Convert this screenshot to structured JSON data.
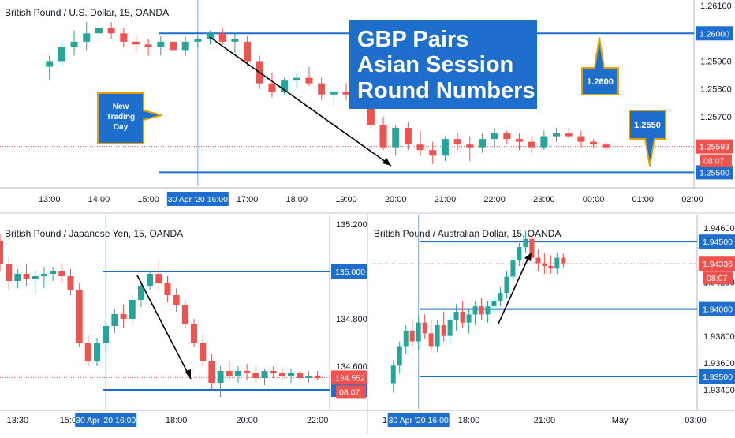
{
  "colors": {
    "up": "#26a69a",
    "down": "#ef5350",
    "level": "#1e6fcd",
    "flag": "#1e6fcd",
    "price_flag": "#ef5350",
    "callout_fill": "#1e6fcd",
    "callout_border": "#e0a100"
  },
  "headline": {
    "lines": [
      "GBP Pairs",
      "Asian Session",
      "Round Numbers"
    ]
  },
  "callouts": {
    "new_day": [
      "New",
      "Trading",
      "Day"
    ],
    "level_high": "1.2600",
    "level_low": "1.2550"
  },
  "chart_data": [
    {
      "type": "candlestick",
      "title": "British Pound / U.S. Dollar, 15, OANDA",
      "ylim": [
        1.2545,
        1.2612
      ],
      "yticks": [
        "1.26100",
        "1.25900",
        "1.25800",
        "1.25700"
      ],
      "xticks": [
        "13:00",
        "14:00",
        "15:00",
        "16:00",
        "17:00",
        "18:00",
        "19:00",
        "20:00",
        "21:00",
        "22:00",
        "23:00",
        "00:00",
        "01:00",
        "02:00"
      ],
      "session_label": "30 Apr '20 16:00",
      "levels": [
        "1.26000",
        "1.25500"
      ],
      "level_values": [
        1.26,
        1.255
      ],
      "last_price": "1.25593",
      "last_value": 1.25593,
      "countdown": "08:07",
      "candles": [
        {
          "t": 13.0,
          "o": 1.2588,
          "h": 1.2592,
          "l": 1.2583,
          "c": 1.259
        },
        {
          "t": 13.25,
          "o": 1.259,
          "h": 1.2597,
          "l": 1.2588,
          "c": 1.2595
        },
        {
          "t": 13.5,
          "o": 1.2595,
          "h": 1.2601,
          "l": 1.2592,
          "c": 1.2597
        },
        {
          "t": 13.75,
          "o": 1.2597,
          "h": 1.2604,
          "l": 1.2594,
          "c": 1.26
        },
        {
          "t": 14.0,
          "o": 1.26,
          "h": 1.2605,
          "l": 1.2597,
          "c": 1.2602
        },
        {
          "t": 14.25,
          "o": 1.2602,
          "h": 1.2604,
          "l": 1.2598,
          "c": 1.26
        },
        {
          "t": 14.5,
          "o": 1.26,
          "h": 1.2602,
          "l": 1.2595,
          "c": 1.2597
        },
        {
          "t": 14.75,
          "o": 1.2597,
          "h": 1.2599,
          "l": 1.2593,
          "c": 1.2596
        },
        {
          "t": 15.0,
          "o": 1.2596,
          "h": 1.2598,
          "l": 1.2592,
          "c": 1.2595
        },
        {
          "t": 15.25,
          "o": 1.2595,
          "h": 1.2599,
          "l": 1.2592,
          "c": 1.2597
        },
        {
          "t": 15.5,
          "o": 1.2597,
          "h": 1.26,
          "l": 1.2593,
          "c": 1.2594
        },
        {
          "t": 15.75,
          "o": 1.2594,
          "h": 1.2599,
          "l": 1.2592,
          "c": 1.2597
        },
        {
          "t": 16.0,
          "o": 1.2597,
          "h": 1.2599,
          "l": 1.2595,
          "c": 1.2598
        },
        {
          "t": 16.25,
          "o": 1.2598,
          "h": 1.2601,
          "l": 1.2596,
          "c": 1.26
        },
        {
          "t": 16.5,
          "o": 1.26,
          "h": 1.2602,
          "l": 1.2596,
          "c": 1.2597
        },
        {
          "t": 16.75,
          "o": 1.2597,
          "h": 1.26,
          "l": 1.2593,
          "c": 1.2598
        },
        {
          "t": 17.0,
          "o": 1.2597,
          "h": 1.2599,
          "l": 1.2588,
          "c": 1.259
        },
        {
          "t": 17.25,
          "o": 1.259,
          "h": 1.2592,
          "l": 1.258,
          "c": 1.2582
        },
        {
          "t": 17.5,
          "o": 1.2582,
          "h": 1.2586,
          "l": 1.2577,
          "c": 1.2579
        },
        {
          "t": 17.75,
          "o": 1.2579,
          "h": 1.2584,
          "l": 1.2578,
          "c": 1.2583
        },
        {
          "t": 18.0,
          "o": 1.2583,
          "h": 1.2586,
          "l": 1.258,
          "c": 1.2584
        },
        {
          "t": 18.25,
          "o": 1.2584,
          "h": 1.2588,
          "l": 1.2581,
          "c": 1.2582
        },
        {
          "t": 18.5,
          "o": 1.2582,
          "h": 1.2584,
          "l": 1.2576,
          "c": 1.2578
        },
        {
          "t": 18.75,
          "o": 1.2578,
          "h": 1.258,
          "l": 1.2574,
          "c": 1.2579
        },
        {
          "t": 19.0,
          "o": 1.2579,
          "h": 1.2582,
          "l": 1.2576,
          "c": 1.2578
        },
        {
          "t": 19.25,
          "o": 1.2583,
          "h": 1.2584,
          "l": 1.2574,
          "c": 1.2575
        },
        {
          "t": 19.5,
          "o": 1.2575,
          "h": 1.2578,
          "l": 1.2566,
          "c": 1.2567
        },
        {
          "t": 19.75,
          "o": 1.2567,
          "h": 1.257,
          "l": 1.2558,
          "c": 1.2559
        },
        {
          "t": 20.0,
          "o": 1.2559,
          "h": 1.2567,
          "l": 1.2556,
          "c": 1.2566
        },
        {
          "t": 20.25,
          "o": 1.2566,
          "h": 1.2568,
          "l": 1.2558,
          "c": 1.256
        },
        {
          "t": 20.5,
          "o": 1.256,
          "h": 1.2565,
          "l": 1.2556,
          "c": 1.2558
        },
        {
          "t": 20.75,
          "o": 1.2558,
          "h": 1.2561,
          "l": 1.2553,
          "c": 1.2556
        },
        {
          "t": 21.0,
          "o": 1.2556,
          "h": 1.2563,
          "l": 1.2554,
          "c": 1.2562
        },
        {
          "t": 21.25,
          "o": 1.2562,
          "h": 1.2564,
          "l": 1.2558,
          "c": 1.256
        },
        {
          "t": 21.5,
          "o": 1.256,
          "h": 1.2563,
          "l": 1.2554,
          "c": 1.2559
        },
        {
          "t": 21.75,
          "o": 1.2559,
          "h": 1.2564,
          "l": 1.2557,
          "c": 1.2562
        },
        {
          "t": 22.0,
          "o": 1.2562,
          "h": 1.2566,
          "l": 1.2559,
          "c": 1.2564
        },
        {
          "t": 22.25,
          "o": 1.2564,
          "h": 1.2565,
          "l": 1.256,
          "c": 1.2562
        },
        {
          "t": 22.5,
          "o": 1.2562,
          "h": 1.2564,
          "l": 1.2558,
          "c": 1.2561
        },
        {
          "t": 22.75,
          "o": 1.2561,
          "h": 1.2563,
          "l": 1.2557,
          "c": 1.2559
        },
        {
          "t": 23.0,
          "o": 1.2559,
          "h": 1.2565,
          "l": 1.2558,
          "c": 1.2563
        },
        {
          "t": 23.25,
          "o": 1.2563,
          "h": 1.2566,
          "l": 1.2561,
          "c": 1.2564
        },
        {
          "t": 23.5,
          "o": 1.2564,
          "h": 1.2566,
          "l": 1.2562,
          "c": 1.2563
        },
        {
          "t": 23.75,
          "o": 1.2563,
          "h": 1.2565,
          "l": 1.2559,
          "c": 1.2561
        },
        {
          "t": 24.0,
          "o": 1.2561,
          "h": 1.2562,
          "l": 1.2559,
          "c": 1.256
        },
        {
          "t": 24.25,
          "o": 1.256,
          "h": 1.2561,
          "l": 1.2558,
          "c": 1.2559
        }
      ]
    },
    {
      "type": "candlestick",
      "title": "British Pound / Japanese Yen, 15, OANDA",
      "ylim": [
        134.42,
        135.24
      ],
      "yticks": [
        "135.200",
        "134.800",
        "134.600"
      ],
      "xticks": [
        "13:30",
        "15:00",
        "16:00",
        "18:00",
        "20:00",
        "22:00"
      ],
      "session_label": "30 Apr '20 16:00",
      "levels": [
        "135.000",
        "134.500"
      ],
      "level_values": [
        135.0,
        134.5
      ],
      "last_price": "134.552",
      "last_value": 134.552,
      "countdown": "08:07",
      "candles": [
        {
          "t": 13.0,
          "o": 135.13,
          "h": 135.16,
          "l": 135.0,
          "c": 135.03
        },
        {
          "t": 13.25,
          "o": 135.03,
          "h": 135.06,
          "l": 134.92,
          "c": 134.96
        },
        {
          "t": 13.5,
          "o": 134.96,
          "h": 135.01,
          "l": 134.93,
          "c": 134.99
        },
        {
          "t": 13.75,
          "o": 134.99,
          "h": 135.03,
          "l": 134.94,
          "c": 134.97
        },
        {
          "t": 14.0,
          "o": 134.97,
          "h": 135.0,
          "l": 134.91,
          "c": 134.98
        },
        {
          "t": 14.25,
          "o": 134.98,
          "h": 135.02,
          "l": 134.93,
          "c": 134.99
        },
        {
          "t": 14.5,
          "o": 134.99,
          "h": 135.02,
          "l": 134.96,
          "c": 135.0
        },
        {
          "t": 14.75,
          "o": 135.0,
          "h": 135.03,
          "l": 134.95,
          "c": 134.98
        },
        {
          "t": 15.0,
          "o": 134.98,
          "h": 135.01,
          "l": 134.9,
          "c": 134.92
        },
        {
          "t": 15.25,
          "o": 134.92,
          "h": 134.95,
          "l": 134.68,
          "c": 134.7
        },
        {
          "t": 15.5,
          "o": 134.7,
          "h": 134.73,
          "l": 134.6,
          "c": 134.62
        },
        {
          "t": 15.75,
          "o": 134.62,
          "h": 134.72,
          "l": 134.6,
          "c": 134.7
        },
        {
          "t": 16.0,
          "o": 134.7,
          "h": 134.79,
          "l": 134.66,
          "c": 134.77
        },
        {
          "t": 16.25,
          "o": 134.77,
          "h": 134.84,
          "l": 134.74,
          "c": 134.82
        },
        {
          "t": 16.5,
          "o": 134.82,
          "h": 134.86,
          "l": 134.76,
          "c": 134.8
        },
        {
          "t": 16.75,
          "o": 134.8,
          "h": 134.9,
          "l": 134.78,
          "c": 134.88
        },
        {
          "t": 17.0,
          "o": 134.88,
          "h": 134.96,
          "l": 134.85,
          "c": 134.94
        },
        {
          "t": 17.25,
          "o": 134.94,
          "h": 135.0,
          "l": 134.92,
          "c": 134.99
        },
        {
          "t": 17.5,
          "o": 134.99,
          "h": 135.05,
          "l": 134.92,
          "c": 134.95
        },
        {
          "t": 17.75,
          "o": 134.95,
          "h": 134.98,
          "l": 134.87,
          "c": 134.9
        },
        {
          "t": 18.0,
          "o": 134.9,
          "h": 134.93,
          "l": 134.83,
          "c": 134.86
        },
        {
          "t": 18.25,
          "o": 134.86,
          "h": 134.88,
          "l": 134.76,
          "c": 134.78
        },
        {
          "t": 18.5,
          "o": 134.78,
          "h": 134.8,
          "l": 134.68,
          "c": 134.7
        },
        {
          "t": 18.75,
          "o": 134.7,
          "h": 134.73,
          "l": 134.6,
          "c": 134.62
        },
        {
          "t": 19.0,
          "o": 134.62,
          "h": 134.65,
          "l": 134.5,
          "c": 134.53
        },
        {
          "t": 19.25,
          "o": 134.53,
          "h": 134.6,
          "l": 134.47,
          "c": 134.58
        },
        {
          "t": 19.5,
          "o": 134.58,
          "h": 134.62,
          "l": 134.54,
          "c": 134.56
        },
        {
          "t": 19.75,
          "o": 134.56,
          "h": 134.6,
          "l": 134.53,
          "c": 134.58
        },
        {
          "t": 20.0,
          "o": 134.58,
          "h": 134.61,
          "l": 134.54,
          "c": 134.57
        },
        {
          "t": 20.25,
          "o": 134.57,
          "h": 134.6,
          "l": 134.53,
          "c": 134.55
        },
        {
          "t": 20.5,
          "o": 134.55,
          "h": 134.59,
          "l": 134.52,
          "c": 134.58
        },
        {
          "t": 20.75,
          "o": 134.58,
          "h": 134.6,
          "l": 134.55,
          "c": 134.57
        },
        {
          "t": 21.0,
          "o": 134.57,
          "h": 134.59,
          "l": 134.54,
          "c": 134.56
        },
        {
          "t": 21.25,
          "o": 134.56,
          "h": 134.59,
          "l": 134.53,
          "c": 134.57
        },
        {
          "t": 21.5,
          "o": 134.57,
          "h": 134.58,
          "l": 134.54,
          "c": 134.55
        },
        {
          "t": 21.75,
          "o": 134.55,
          "h": 134.58,
          "l": 134.53,
          "c": 134.56
        },
        {
          "t": 22.0,
          "o": 134.56,
          "h": 134.58,
          "l": 134.54,
          "c": 134.55
        }
      ]
    },
    {
      "type": "candlestick",
      "title": "British Pound / Australian Dollar, 15, OANDA",
      "ylim": [
        1.9326,
        1.947
      ],
      "yticks": [
        "1.94600",
        "1.94200",
        "1.93800",
        "1.93600",
        "1.93400"
      ],
      "xticks": [
        "15:00",
        "16:00",
        "18:00",
        "21:00",
        "May",
        "03:00"
      ],
      "session_label": "30 Apr '20 16:00",
      "levels": [
        "1.94500",
        "1.94000",
        "1.93500"
      ],
      "level_values": [
        1.945,
        1.94,
        1.935
      ],
      "last_price": "1.94336",
      "last_value": 1.94336,
      "countdown": "08:07",
      "candles": [
        {
          "t": 15.0,
          "o": 1.9345,
          "h": 1.9362,
          "l": 1.9338,
          "c": 1.9358
        },
        {
          "t": 15.25,
          "o": 1.9358,
          "h": 1.9376,
          "l": 1.9352,
          "c": 1.9372
        },
        {
          "t": 15.5,
          "o": 1.9372,
          "h": 1.9388,
          "l": 1.9367,
          "c": 1.9384
        },
        {
          "t": 15.75,
          "o": 1.9384,
          "h": 1.9392,
          "l": 1.9372,
          "c": 1.9376
        },
        {
          "t": 16.0,
          "o": 1.9376,
          "h": 1.9394,
          "l": 1.937,
          "c": 1.939
        },
        {
          "t": 16.25,
          "o": 1.939,
          "h": 1.9396,
          "l": 1.9378,
          "c": 1.9382
        },
        {
          "t": 16.5,
          "o": 1.9382,
          "h": 1.9392,
          "l": 1.9368,
          "c": 1.9372
        },
        {
          "t": 16.75,
          "o": 1.9372,
          "h": 1.9392,
          "l": 1.9368,
          "c": 1.9388
        },
        {
          "t": 17.0,
          "o": 1.9388,
          "h": 1.9398,
          "l": 1.9376,
          "c": 1.938
        },
        {
          "t": 17.25,
          "o": 1.938,
          "h": 1.9396,
          "l": 1.9374,
          "c": 1.9392
        },
        {
          "t": 17.5,
          "o": 1.9392,
          "h": 1.9404,
          "l": 1.9384,
          "c": 1.9398
        },
        {
          "t": 17.75,
          "o": 1.9398,
          "h": 1.9406,
          "l": 1.9386,
          "c": 1.939
        },
        {
          "t": 18.0,
          "o": 1.939,
          "h": 1.94,
          "l": 1.9382,
          "c": 1.9396
        },
        {
          "t": 18.25,
          "o": 1.9396,
          "h": 1.9406,
          "l": 1.9388,
          "c": 1.9402
        },
        {
          "t": 18.5,
          "o": 1.9402,
          "h": 1.9408,
          "l": 1.9392,
          "c": 1.9396
        },
        {
          "t": 18.75,
          "o": 1.9396,
          "h": 1.9406,
          "l": 1.939,
          "c": 1.9402
        },
        {
          "t": 19.0,
          "o": 1.9402,
          "h": 1.941,
          "l": 1.9396,
          "c": 1.9406
        },
        {
          "t": 19.25,
          "o": 1.9406,
          "h": 1.9416,
          "l": 1.9402,
          "c": 1.9412
        },
        {
          "t": 19.5,
          "o": 1.9412,
          "h": 1.9428,
          "l": 1.9408,
          "c": 1.9424
        },
        {
          "t": 19.75,
          "o": 1.9424,
          "h": 1.944,
          "l": 1.942,
          "c": 1.9436
        },
        {
          "t": 20.0,
          "o": 1.9436,
          "h": 1.9449,
          "l": 1.9432,
          "c": 1.9446
        },
        {
          "t": 20.25,
          "o": 1.9446,
          "h": 1.9458,
          "l": 1.9442,
          "c": 1.9452
        },
        {
          "t": 20.5,
          "o": 1.9452,
          "h": 1.9456,
          "l": 1.9434,
          "c": 1.9438
        },
        {
          "t": 20.75,
          "o": 1.9438,
          "h": 1.9444,
          "l": 1.9428,
          "c": 1.9434
        },
        {
          "t": 21.0,
          "o": 1.9434,
          "h": 1.9442,
          "l": 1.9426,
          "c": 1.9432
        },
        {
          "t": 21.25,
          "o": 1.9432,
          "h": 1.944,
          "l": 1.9426,
          "c": 1.943
        },
        {
          "t": 21.5,
          "o": 1.943,
          "h": 1.9442,
          "l": 1.9426,
          "c": 1.9438
        },
        {
          "t": 21.75,
          "o": 1.9438,
          "h": 1.9441,
          "l": 1.9431,
          "c": 1.9434
        }
      ]
    }
  ]
}
